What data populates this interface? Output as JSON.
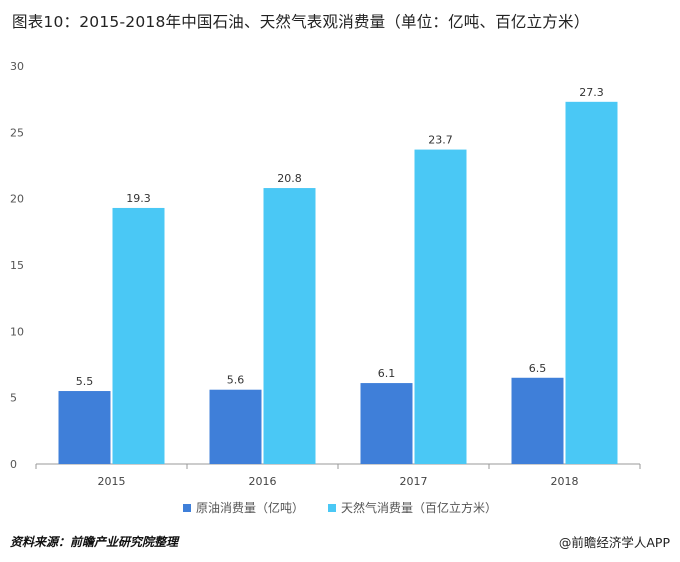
{
  "title": "图表10：2015-2018年中国石油、天然气表观消费量（单位：亿吨、百亿立方米）",
  "source": "资料来源：前瞻产业研究院整理",
  "brand": "@前瞻经济学人APP",
  "colors": {
    "oil": "#3f7fd9",
    "gas": "#4ac8f5",
    "grid": "#e8e8e8",
    "axis": "#999999"
  },
  "chart_data": {
    "type": "bar",
    "categories": [
      "2015",
      "2016",
      "2017",
      "2018"
    ],
    "series": [
      {
        "name": "原油消费量（亿吨）",
        "values": [
          5.5,
          5.6,
          6.1,
          6.5
        ]
      },
      {
        "name": "天然气消费量（百亿立方米）",
        "values": [
          19.3,
          20.8,
          23.7,
          27.3
        ]
      }
    ],
    "ylim": [
      0,
      30
    ],
    "yticks": [
      0,
      5,
      10,
      15,
      20,
      25,
      30
    ],
    "grid": false,
    "legend": "bottom"
  }
}
